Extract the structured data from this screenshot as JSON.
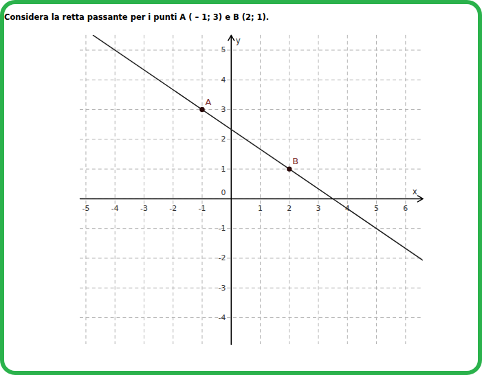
{
  "chart_data": {
    "type": "line",
    "title": "Considera la retta passante per i punti A ( – 1; 3) e B (2; 1).",
    "xlabel": "x",
    "ylabel": "y",
    "x": [
      -4.75,
      -1,
      2,
      6.6
    ],
    "values": [
      5.5,
      3,
      1,
      -2.07
    ],
    "color": "#222222",
    "points": [
      {
        "label": "A",
        "x": -1,
        "y": 3,
        "color": "#7a2a2a"
      },
      {
        "label": "B",
        "x": 2,
        "y": 1,
        "color": "#7a2a2a"
      }
    ],
    "xlim": [
      -5.2,
      6.6
    ],
    "ylim": [
      -4.9,
      5.5
    ],
    "xticks": [
      -5,
      -4,
      -3,
      -2,
      -1,
      1,
      2,
      3,
      4,
      5,
      6
    ],
    "yticks": [
      -4,
      -3,
      -2,
      -1,
      0,
      1,
      2,
      3,
      4,
      5
    ],
    "grid": true
  }
}
